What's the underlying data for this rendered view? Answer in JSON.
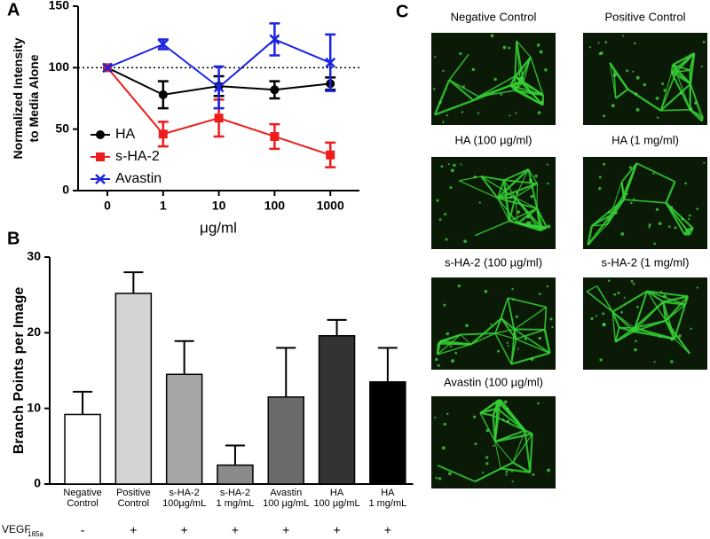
{
  "panel_labels": [
    "A",
    "B",
    "C"
  ],
  "chart_data": [
    {
      "type": "line",
      "categories": [
        "0",
        "1",
        "10",
        "100",
        "1000"
      ],
      "x_label": "μg/ml",
      "y_label": "Normalized Intensity to Media Alone",
      "ylim": [
        0,
        150
      ],
      "yticks": [
        0,
        50,
        100,
        150
      ],
      "reference_line": 100,
      "series": [
        {
          "name": "HA",
          "color": "#000000",
          "marker": "circle",
          "values": [
            100,
            78,
            85,
            82,
            87
          ],
          "errors": [
            0,
            11,
            8,
            7,
            5
          ]
        },
        {
          "name": "s-HA-2",
          "color": "#ee1c1c",
          "marker": "square",
          "values": [
            100,
            46,
            59,
            44,
            29
          ],
          "errors": [
            0,
            10,
            15,
            10,
            10
          ]
        },
        {
          "name": "Avastin",
          "color": "#1c24e0",
          "marker": "x",
          "values": [
            100,
            119,
            84,
            123,
            104
          ],
          "errors": [
            0,
            4,
            17,
            13,
            23
          ]
        }
      ]
    },
    {
      "type": "bar",
      "categories": [
        [
          "Negative",
          "Control"
        ],
        [
          "Positive",
          "Control"
        ],
        [
          "s-HA-2",
          "100µg/mL"
        ],
        [
          "s-HA-2",
          "1 mg/mL"
        ],
        [
          "Avastin",
          "100 µg/mL"
        ],
        [
          "HA",
          "100 µg/mL"
        ],
        [
          "HA",
          "1 mg/mL"
        ]
      ],
      "values": [
        9.2,
        25.2,
        14.5,
        2.5,
        11.5,
        19.6,
        13.5
      ],
      "errors": [
        3,
        2.8,
        4.4,
        2.6,
        6.5,
        2.1,
        4.5
      ],
      "colors": [
        "#ffffff",
        "#d4d4d4",
        "#a6a6a8",
        "#8a8a8a",
        "#6b6b6b",
        "#333333",
        "#000000"
      ],
      "y_label": "Branch Points per Image",
      "ylim": [
        0,
        30
      ],
      "yticks": [
        0,
        10,
        20,
        30
      ],
      "treatment_label": "VEGF",
      "treatment_subscript": "165a",
      "treatment": [
        "-",
        "+",
        "+",
        "+",
        "+",
        "+",
        "+"
      ]
    }
  ],
  "micrographs": [
    "Negative Control",
    "Positive Control",
    "HA (100 µg/ml)",
    "HA (1 mg/ml)",
    "s-HA-2 (100 µg/ml)",
    "s-HA-2 (1 mg/ml)",
    "Avastin (100 µg/ml)"
  ]
}
